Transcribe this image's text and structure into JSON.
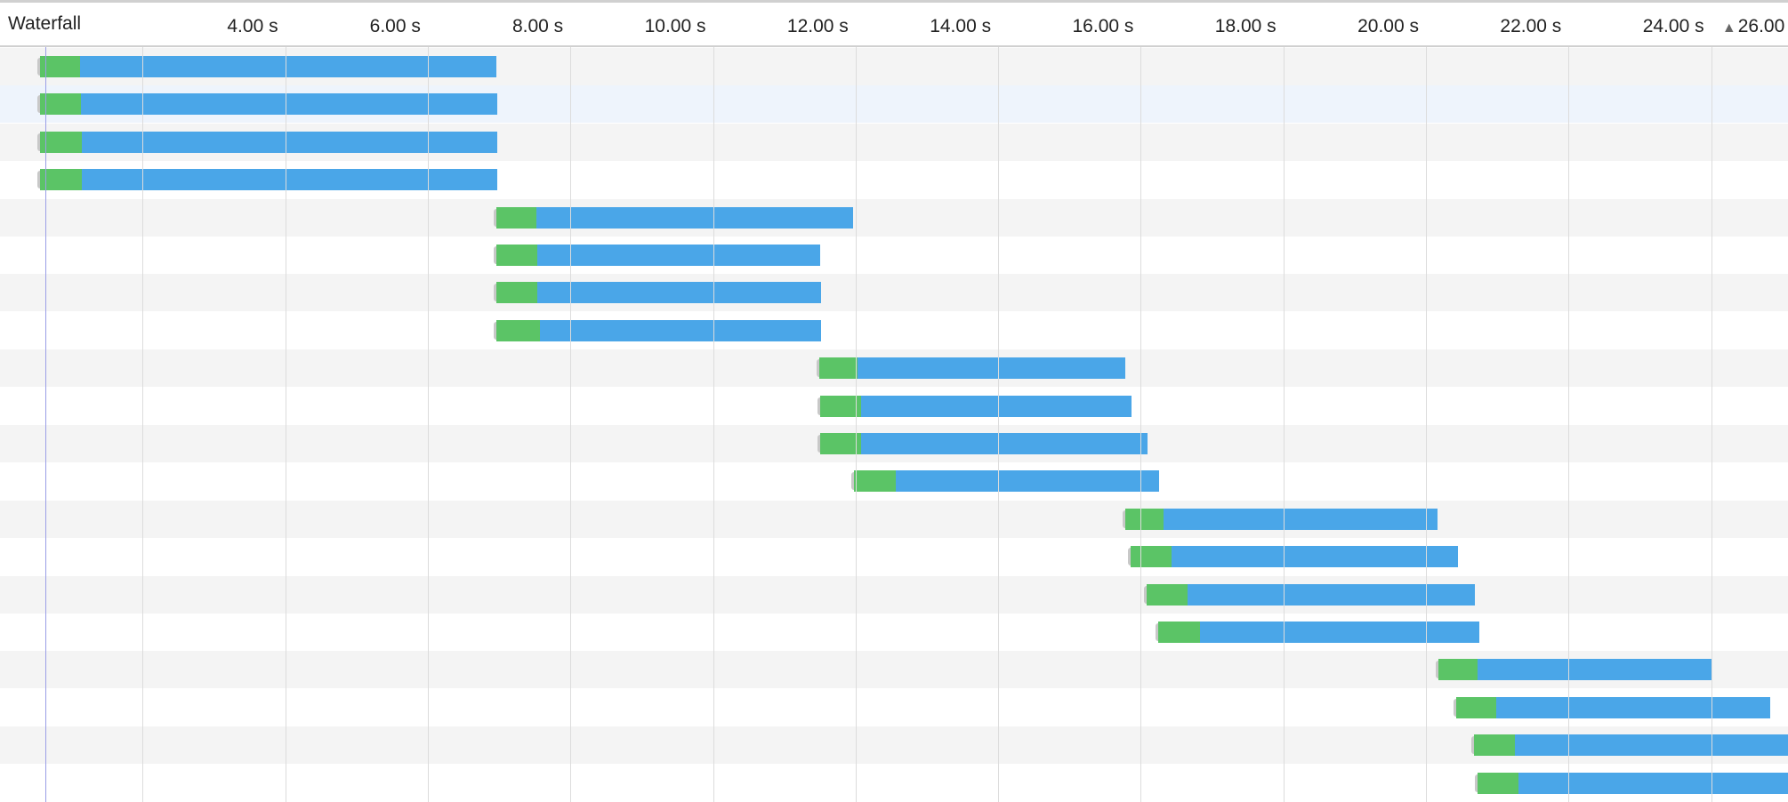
{
  "header": {
    "title": "Waterfall",
    "sort_indicator": "▲",
    "ticks": [
      "4.00 s",
      "6.00 s",
      "8.00 s",
      "10.00 s",
      "12.00 s",
      "14.00 s",
      "16.00 s",
      "18.00 s",
      "20.00 s",
      "22.00 s",
      "24.00 s"
    ],
    "last_tick": "26.00 s"
  },
  "colors": {
    "wait": "#5bc466",
    "receive": "#4aa6e8",
    "row_alt": "#f4f4f4",
    "row_selected": "#eef4fc"
  },
  "selected_row": 1,
  "chart_data": {
    "type": "waterfall",
    "unit": "s",
    "axis_range": [
      0,
      25.1
    ],
    "tick_step": 2,
    "start_marker": 0.64,
    "rows": [
      {
        "start": 0.56,
        "wait_end": 1.12,
        "end": 6.96
      },
      {
        "start": 0.56,
        "wait_end": 1.14,
        "end": 6.98
      },
      {
        "start": 0.56,
        "wait_end": 1.15,
        "end": 6.98
      },
      {
        "start": 0.56,
        "wait_end": 1.15,
        "end": 6.98
      },
      {
        "start": 6.96,
        "wait_end": 7.52,
        "end": 11.97
      },
      {
        "start": 6.96,
        "wait_end": 7.54,
        "end": 11.5
      },
      {
        "start": 6.96,
        "wait_end": 7.54,
        "end": 11.52
      },
      {
        "start": 6.96,
        "wait_end": 7.57,
        "end": 11.52
      },
      {
        "start": 11.49,
        "wait_end": 12.03,
        "end": 15.78
      },
      {
        "start": 11.5,
        "wait_end": 12.08,
        "end": 15.87
      },
      {
        "start": 11.5,
        "wait_end": 12.08,
        "end": 16.1
      },
      {
        "start": 11.98,
        "wait_end": 12.56,
        "end": 16.26
      },
      {
        "start": 15.78,
        "wait_end": 16.32,
        "end": 20.16
      },
      {
        "start": 15.86,
        "wait_end": 16.43,
        "end": 20.45
      },
      {
        "start": 16.08,
        "wait_end": 16.66,
        "end": 20.69
      },
      {
        "start": 16.24,
        "wait_end": 16.83,
        "end": 20.75
      },
      {
        "start": 20.18,
        "wait_end": 20.72,
        "end": 24.0
      },
      {
        "start": 20.43,
        "wait_end": 20.99,
        "end": 24.83
      },
      {
        "start": 20.67,
        "wait_end": 21.25,
        "end": 26.0
      },
      {
        "start": 20.72,
        "wait_end": 21.3,
        "end": 26.0
      }
    ]
  }
}
